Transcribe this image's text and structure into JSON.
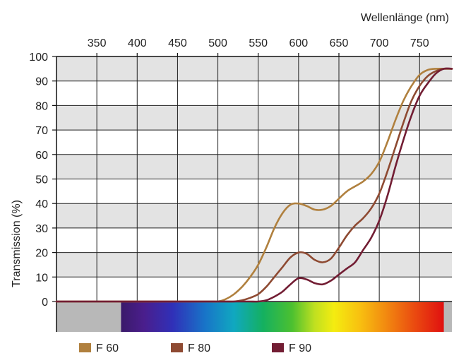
{
  "chart_data": {
    "type": "line",
    "xlabel": "Wellenlänge (nm)",
    "ylabel": "Transmission (%)",
    "xlim": [
      300,
      790
    ],
    "ylim": [
      0,
      100
    ],
    "x_ticks": [
      "350",
      "400",
      "450",
      "500",
      "550",
      "600",
      "650",
      "700",
      "750"
    ],
    "y_ticks": [
      "0",
      "10",
      "20",
      "30",
      "40",
      "50",
      "60",
      "70",
      "80",
      "90",
      "100"
    ],
    "grid": true,
    "legend_position": "bottom",
    "x": [
      300,
      480,
      490,
      500,
      510,
      520,
      530,
      540,
      550,
      560,
      570,
      580,
      590,
      600,
      610,
      620,
      630,
      640,
      650,
      660,
      670,
      680,
      690,
      700,
      710,
      720,
      730,
      740,
      750,
      760,
      770,
      780,
      790
    ],
    "series": [
      {
        "name": "F 60",
        "color": "#b0803e",
        "values": [
          0,
          0,
          0,
          0,
          1,
          3,
          6,
          10,
          15,
          22,
          30,
          36,
          39.5,
          40,
          39,
          37.5,
          37.5,
          39,
          42,
          45,
          47,
          49,
          52,
          57,
          65,
          74,
          82,
          88,
          92.5,
          94.5,
          95,
          95,
          95
        ]
      },
      {
        "name": "F 80",
        "color": "#8e4a32",
        "values": [
          0,
          0,
          0,
          0,
          0,
          0,
          0.5,
          1.5,
          3,
          6,
          10,
          14,
          18,
          20,
          19.5,
          17,
          16,
          17.5,
          22,
          27,
          31,
          34,
          38,
          44,
          53,
          63,
          73,
          82,
          88,
          92,
          94,
          95,
          95
        ]
      },
      {
        "name": "F 90",
        "color": "#721d33",
        "values": [
          0,
          0,
          0,
          0,
          0,
          0,
          0,
          0,
          0,
          0.5,
          2,
          4,
          7,
          9.5,
          9,
          7.5,
          7,
          8.5,
          11,
          13.5,
          16,
          21,
          26,
          33,
          43,
          55,
          66,
          76,
          84,
          89,
          93,
          95,
          95
        ]
      }
    ]
  }
}
